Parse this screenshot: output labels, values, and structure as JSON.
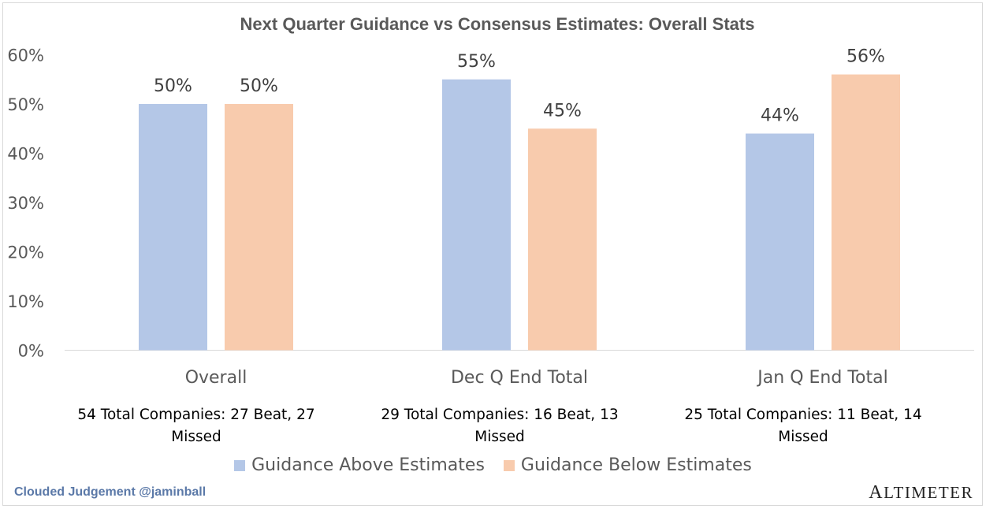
{
  "chart_data": {
    "type": "bar",
    "title": "Next Quarter Guidance vs Consensus Estimates: Overall Stats",
    "categories": [
      "Overall",
      "Dec Q End Total",
      "Jan Q End Total"
    ],
    "category_notes": [
      [
        "54 Total Companies: 27 Beat, 27",
        "Missed"
      ],
      [
        "29 Total Companies: 16 Beat, 13",
        "Missed"
      ],
      [
        "25 Total Companies: 11 Beat, 14",
        "Missed"
      ]
    ],
    "series": [
      {
        "name": "Guidance Above Estimates",
        "values": [
          50,
          55,
          44
        ],
        "labels": [
          "50%",
          "55%",
          "44%"
        ],
        "color": "#b4c7e7"
      },
      {
        "name": "Guidance Below Estimates",
        "values": [
          50,
          45,
          56
        ],
        "labels": [
          "50%",
          "45%",
          "56%"
        ],
        "color": "#f8cbad"
      }
    ],
    "yticks": [
      "0%",
      "10%",
      "20%",
      "30%",
      "40%",
      "50%",
      "60%"
    ],
    "ylim": [
      0,
      60
    ],
    "grid": false,
    "legend_position": "bottom"
  },
  "footer": {
    "left": "Clouded Judgement @jaminball",
    "right": "Altimeter"
  }
}
